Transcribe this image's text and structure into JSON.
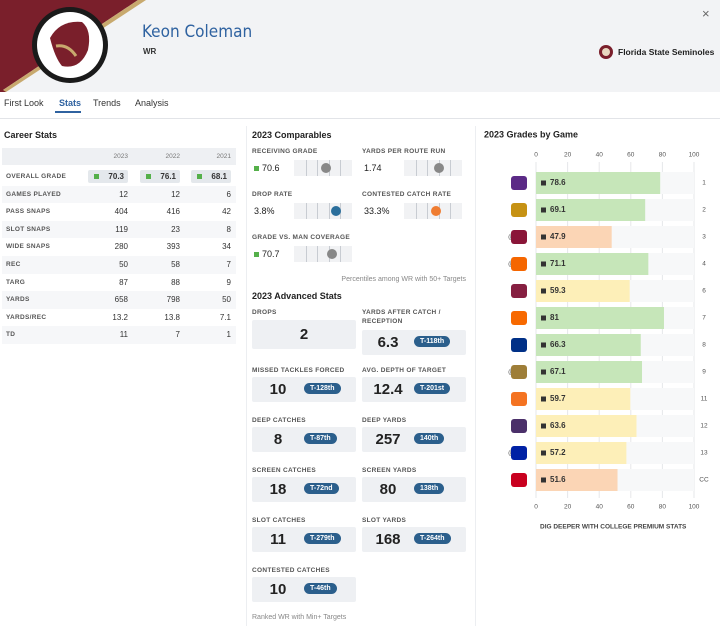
{
  "header": {
    "name": "Keon Coleman",
    "position": "WR",
    "team": "Florida State Seminoles"
  },
  "tabs": [
    "First Look",
    "Stats",
    "Trends",
    "Analysis"
  ],
  "career_stats": {
    "title": "Career Stats",
    "columns": [
      "2023",
      "2022",
      "2021"
    ],
    "rows": [
      {
        "label": "OVERALL GRADE",
        "values": [
          70.3,
          76.1,
          68.1
        ]
      },
      {
        "label": "GAMES PLAYED",
        "values": [
          12,
          12,
          6
        ]
      },
      {
        "label": "PASS SNAPS",
        "values": [
          404,
          416,
          42
        ]
      },
      {
        "label": "SLOT SNAPS",
        "values": [
          119,
          23,
          8
        ]
      },
      {
        "label": "WIDE SNAPS",
        "values": [
          280,
          393,
          34
        ]
      },
      {
        "label": "REC",
        "values": [
          50,
          58,
          7
        ]
      },
      {
        "label": "TARG",
        "values": [
          87,
          88,
          9
        ]
      },
      {
        "label": "YARDS",
        "values": [
          658,
          798,
          50
        ]
      },
      {
        "label": "YARDS/REC",
        "values": [
          13.2,
          13.8,
          7.1
        ]
      },
      {
        "label": "TD",
        "values": [
          11,
          7,
          1
        ]
      }
    ]
  },
  "comparables": {
    "title": "2023 Comparables",
    "items": [
      {
        "label": "RECEIVING GRADE",
        "value": 70.6
      },
      {
        "label": "YARDS PER ROUTE RUN",
        "value": 1.74
      },
      {
        "label": "DROP RATE",
        "value": "3.8%"
      },
      {
        "label": "CONTESTED CATCH RATE",
        "value": "33.3%"
      },
      {
        "label": "GRADE VS. MAN COVERAGE",
        "value": 70.7
      }
    ],
    "note": "Percentiles among WR with 50+ Targets"
  },
  "advanced_stats": {
    "title": "2023 Advanced Stats",
    "items": [
      {
        "label": "DROPS",
        "value": 2
      },
      {
        "label": "YARDS AFTER CATCH / RECEPTION",
        "value": 6.3,
        "rank": "T-118th"
      },
      {
        "label": "MISSED TACKLES FORCED",
        "value": 10,
        "rank": "T-128th"
      },
      {
        "label": "AVG. DEPTH OF TARGET",
        "value": 12.4,
        "rank": "T-201st"
      },
      {
        "label": "DEEP CATCHES",
        "value": 8,
        "rank": "T-87th"
      },
      {
        "label": "DEEP YARDS",
        "value": 257,
        "rank": "140th"
      },
      {
        "label": "SCREEN CATCHES",
        "value": 18,
        "rank": "T-72nd"
      },
      {
        "label": "SCREEN YARDS",
        "value": 80,
        "rank": "138th"
      },
      {
        "label": "SLOT CATCHES",
        "value": 11,
        "rank": "T-279th"
      },
      {
        "label": "SLOT YARDS",
        "value": 168,
        "rank": "T-264th"
      },
      {
        "label": "CONTESTED CATCHES",
        "value": 10,
        "rank": "T-46th"
      }
    ],
    "note": "Ranked WR with Min+ Targets"
  },
  "grades_by_game": {
    "title": "2023 Grades by Game",
    "xlim": [
      0,
      100
    ],
    "xticks": [
      0,
      20,
      40,
      60,
      80,
      100
    ],
    "games": [
      {
        "grade": 78.6,
        "color": "#c6e6b9",
        "week": "1"
      },
      {
        "grade": 69.1,
        "color": "#c6e6b9",
        "week": "2"
      },
      {
        "prefix": "@",
        "grade": 47.9,
        "color": "#fbd5b5",
        "week": "3"
      },
      {
        "prefix": "@",
        "grade": 71.1,
        "color": "#c6e6b9",
        "week": "4"
      },
      {
        "grade": 59.3,
        "color": "#fdefb8",
        "week": "6"
      },
      {
        "grade": 81,
        "color": "#c6e6b9",
        "week": "7"
      },
      {
        "grade": 66.3,
        "color": "#c6e6b9",
        "week": "8"
      },
      {
        "prefix": "@",
        "grade": 67.1,
        "color": "#c6e6b9",
        "week": "9"
      },
      {
        "grade": 59.7,
        "color": "#fdefb8",
        "week": "11"
      },
      {
        "grade": 63.6,
        "color": "#fdefb8",
        "week": "12"
      },
      {
        "prefix": "@",
        "grade": 57.2,
        "color": "#fdefb8",
        "week": "13"
      },
      {
        "grade": 51.6,
        "color": "#fbd5b5",
        "week": "CC"
      }
    ],
    "link": "DIG DEEPER WITH COLLEGE PREMIUM STATS"
  }
}
